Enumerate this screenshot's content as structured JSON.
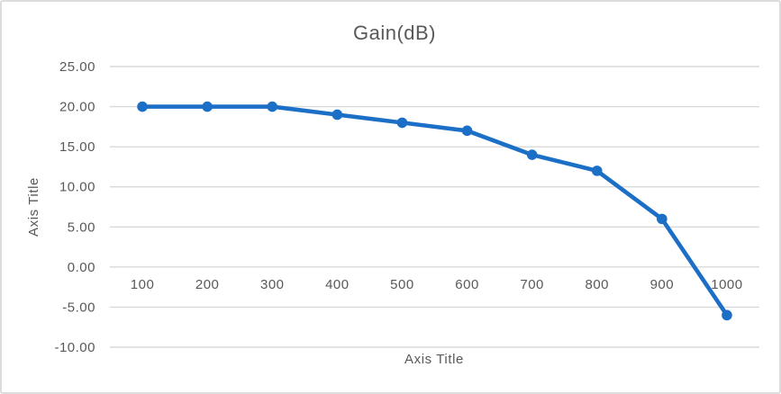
{
  "chart": {
    "title": "Gain(dB)",
    "x_axis_title": "Axis Title",
    "y_axis_title": "Axis Title"
  },
  "chart_data": {
    "type": "line",
    "title": "Gain(dB)",
    "xlabel": "Axis Title",
    "ylabel": "Axis Title",
    "categories": [
      100,
      200,
      300,
      400,
      500,
      600,
      700,
      800,
      900,
      1000
    ],
    "series": [
      {
        "name": "Gain(dB)",
        "values": [
          20,
          20,
          20,
          19,
          18,
          17,
          14,
          12,
          6,
          -6
        ]
      }
    ],
    "ylim": [
      -10,
      25
    ],
    "ytick_step": 5,
    "ytick_decimals": 2,
    "grid": true,
    "legend_position": "none",
    "marker": "circle",
    "colors": {
      "line": "#1C6FC6",
      "text": "#595959",
      "gridline": "#D9D9D9",
      "background": "#FFFFFF",
      "frame_border": "#DCDCDC"
    }
  }
}
